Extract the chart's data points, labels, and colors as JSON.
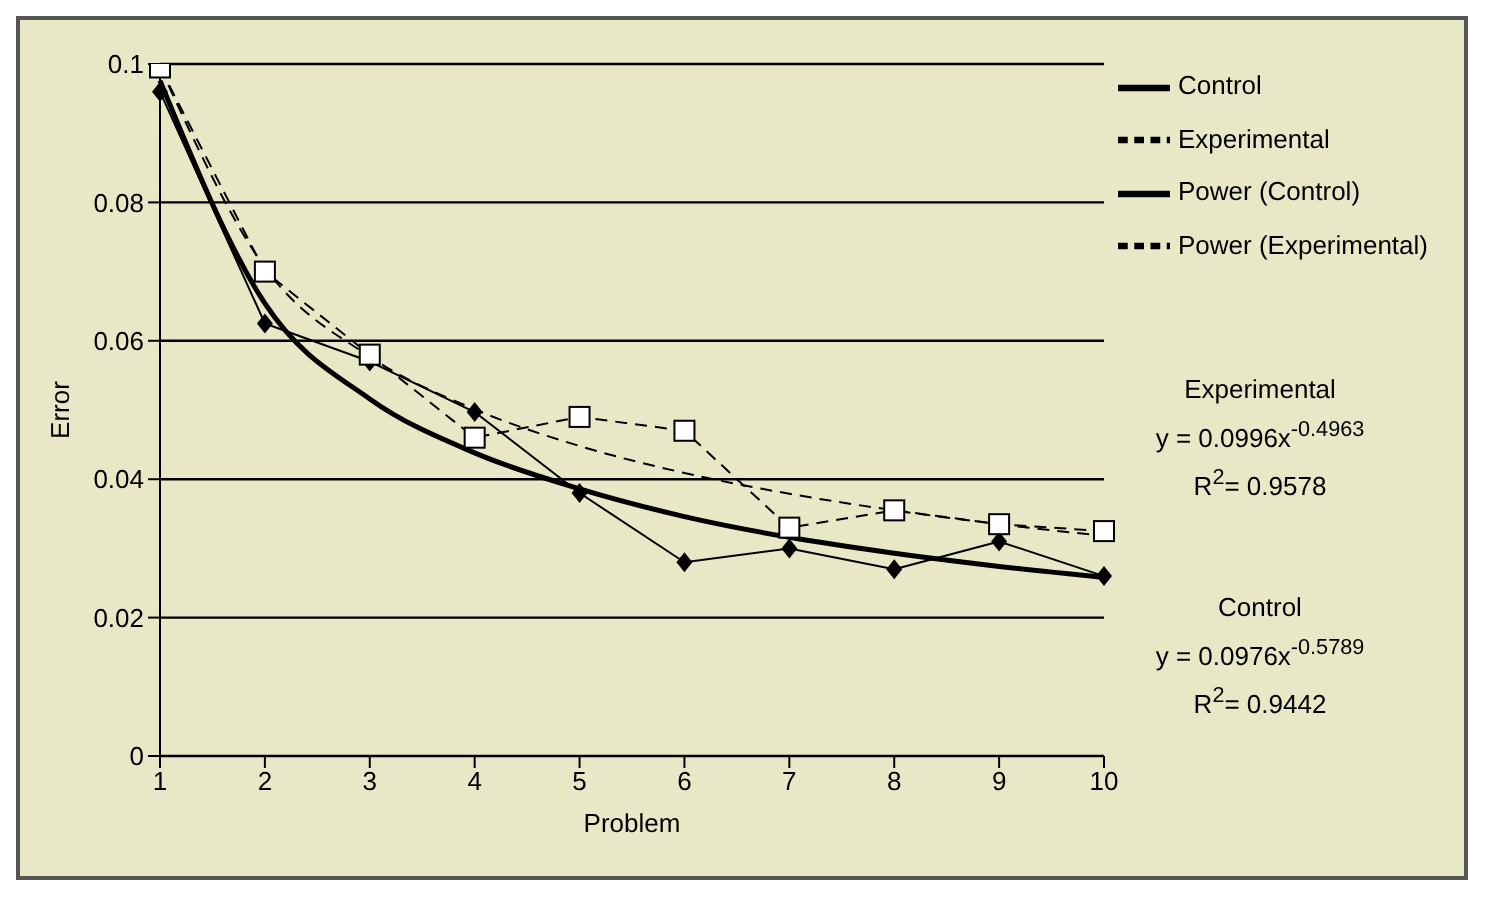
{
  "chart_data": {
    "type": "line",
    "xlabel": "Problem",
    "ylabel": "Error",
    "categories": [
      "1",
      "2",
      "3",
      "4",
      "5",
      "6",
      "7",
      "8",
      "9",
      "10"
    ],
    "series": [
      {
        "name": "Control",
        "color": "#000000",
        "marker": "diamond",
        "line_style": "solid",
        "values": [
          0.096,
          0.0625,
          0.057,
          0.0497,
          0.038,
          0.028,
          0.03,
          0.027,
          0.031,
          0.026
        ]
      },
      {
        "name": "Experimental",
        "color": "#000000",
        "marker": "square",
        "line_style": "dashed",
        "values": [
          0.0995,
          0.07,
          0.058,
          0.046,
          0.049,
          0.047,
          0.033,
          0.0355,
          0.0335,
          0.0325
        ]
      },
      {
        "name": "Power (Control)",
        "color": "#000000",
        "marker": "none",
        "line_style": "solid",
        "values": [
          0.0976,
          0.0654,
          0.0516,
          0.0438,
          0.0386,
          0.0346,
          0.0316,
          0.0293,
          0.0274,
          0.0258
        ]
      },
      {
        "name": "Power (Experimental)",
        "color": "#000000",
        "marker": "none",
        "line_style": "dashed",
        "values": [
          0.0996,
          0.0706,
          0.0577,
          0.0501,
          0.0448,
          0.0409,
          0.0379,
          0.0355,
          0.0335,
          0.0318
        ]
      }
    ],
    "ylim": [
      0,
      0.1
    ],
    "yticks": [
      0,
      0.02,
      0.04,
      0.06,
      0.08,
      0.1
    ],
    "grid": "y",
    "legend": "right",
    "annotations": [
      "Experimental",
      "y = 0.0996x$^{-0.4963}$",
      "R$^{2}$= 0.9578",
      "Control",
      "y = 0.0976x$^{-0.5789}$",
      "R$^{2}$= 0.9442"
    ]
  }
}
